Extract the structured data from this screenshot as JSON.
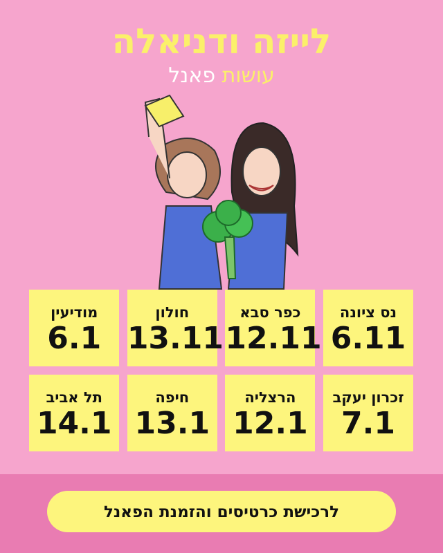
{
  "header": {
    "title": "לייזה ודניאלה",
    "subtitle_part1": "עושות",
    "subtitle_part2": "פאנל"
  },
  "illustration": {
    "icon": "two-women-watering-broccoli-drawing"
  },
  "shows": [
    {
      "city": "נס ציונה",
      "date": "6.11"
    },
    {
      "city": "כפר סבא",
      "date": "12.11"
    },
    {
      "city": "חולון",
      "date": "13.11"
    },
    {
      "city": "מודיעין",
      "date": "6.1"
    },
    {
      "city": "זכרון יעקב",
      "date": "7.1"
    },
    {
      "city": "הרצליה",
      "date": "12.1"
    },
    {
      "city": "חיפה",
      "date": "13.1"
    },
    {
      "city": "תל אביב",
      "date": "14.1"
    }
  ],
  "cta": {
    "label": "לרכישת כרטיסים והזמנת הפאנל"
  },
  "colors": {
    "background": "#f6a5cd",
    "accent_yellow": "#fdf57d",
    "band": "#e97cb2"
  }
}
